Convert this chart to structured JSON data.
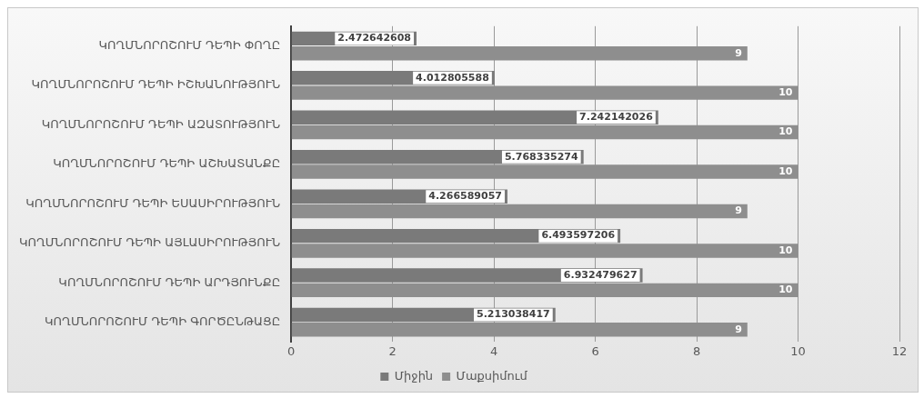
{
  "chart_data": {
    "type": "bar",
    "orientation": "horizontal",
    "categories": [
      "ԿՈՂՄՆՈՐՈՇՈՒՄ ԴԵՊԻ ՓՈՂԸ",
      "ԿՈՂՄՆՈՐՈՇՈՒՄ ԴԵՊԻ ԻՇԽԱՆՈՒԹՅՈՒՆ",
      "ԿՈՂՄՆՈՐՈՇՈՒՄ ԴԵՊԻ ԱԶԱՏՈՒԹՅՈՒՆ",
      "ԿՈՂՄՆՈՐՈՇՈՒՄ ԴԵՊԻ ԱՇԽԱՏԱՆՔԸ",
      "ԿՈՂՄՆՈՐՈՇՈՒՄ ԴԵՊԻ ԵՍԱՍԻՐՈՒԹՅՈՒՆ",
      "ԿՈՂՄՆՈՐՈՇՈՒՄ ԴԵՊԻ ԱՅԼԱՍԻՐՈՒԹՅՈՒՆ",
      "ԿՈՂՄՆՈՐՈՇՈՒՄ ԴԵՊԻ ԱՐԴՅՈՒՆՔԸ",
      "ԿՈՂՄՆՈՐՈՇՈՒՄ ԴԵՊԻ ԳՈՐԾԸՆԹԱՑԸ"
    ],
    "series": [
      {
        "name": "Միջին",
        "color": "#7a7a7a",
        "values": [
          2.472642608,
          4.012805588,
          7.242142026,
          5.768335274,
          4.266589057,
          6.493597206,
          6.932479627,
          5.213038417
        ]
      },
      {
        "name": "Մաքսիմում",
        "color": "#8e8e8e",
        "values": [
          9,
          10,
          10,
          10,
          9,
          10,
          10,
          9
        ]
      }
    ],
    "xlim": [
      0,
      12
    ],
    "xticks": [
      0,
      2,
      4,
      6,
      8,
      10,
      12
    ],
    "grid": "x",
    "legend": "bottom",
    "data_labels": true
  }
}
